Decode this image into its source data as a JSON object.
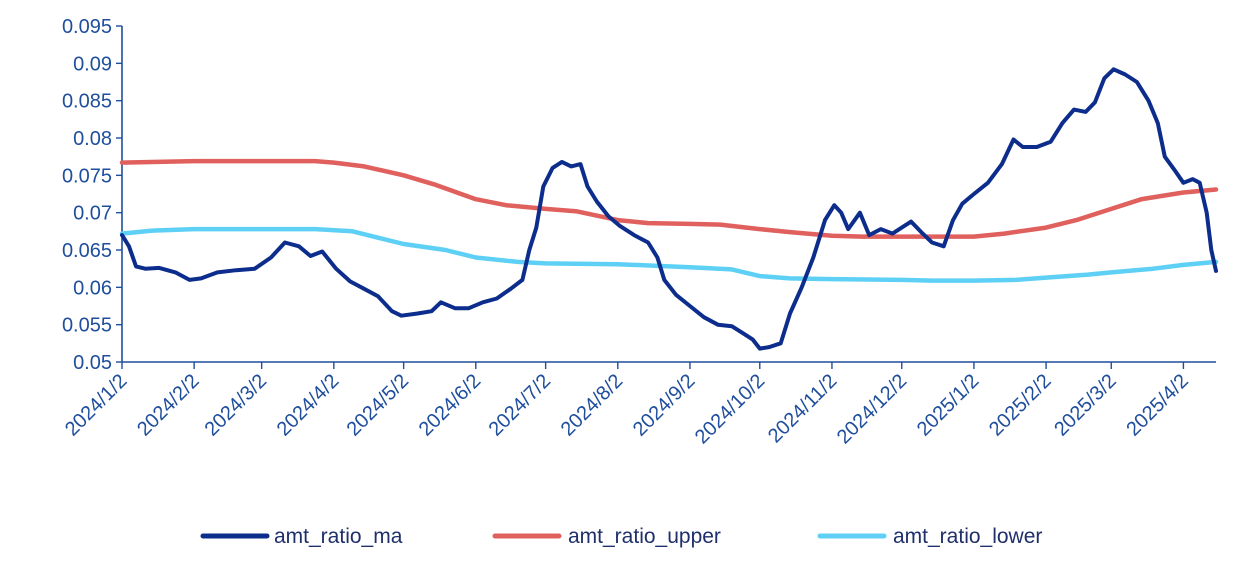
{
  "chart_data": {
    "type": "line",
    "title": "",
    "xlabel": "",
    "ylabel": "",
    "x_range": [
      "2024/1/2",
      "2025/4/16"
    ],
    "ylim": [
      0.05,
      0.095
    ],
    "yticks": [
      "0.05",
      "0.055",
      "0.06",
      "0.065",
      "0.07",
      "0.075",
      "0.08",
      "0.085",
      "0.09",
      "0.095"
    ],
    "xticks": [
      "2024/1/2",
      "2024/2/2",
      "2024/3/2",
      "2024/4/2",
      "2024/5/2",
      "2024/6/2",
      "2024/7/2",
      "2024/8/2",
      "2024/9/2",
      "2024/10/2",
      "2024/11/2",
      "2024/12/2",
      "2025/1/2",
      "2025/2/2",
      "2025/3/2",
      "2025/4/2"
    ],
    "grid": false,
    "legend_position": "bottom",
    "series": [
      {
        "name": "amt_ratio_ma",
        "color": "#0d2d8c",
        "points": [
          [
            "2024/1/2",
            0.067
          ],
          [
            "2024/1/5",
            0.0655
          ],
          [
            "2024/1/8",
            0.0628
          ],
          [
            "2024/1/12",
            0.0625
          ],
          [
            "2024/1/18",
            0.0626
          ],
          [
            "2024/1/25",
            0.062
          ],
          [
            "2024/1/31",
            0.061
          ],
          [
            "2024/2/5",
            0.0612
          ],
          [
            "2024/2/12",
            0.062
          ],
          [
            "2024/2/20",
            0.0623
          ],
          [
            "2024/2/28",
            0.0625
          ],
          [
            "2024/3/6",
            0.064
          ],
          [
            "2024/3/12",
            0.066
          ],
          [
            "2024/3/18",
            0.0655
          ],
          [
            "2024/3/23",
            0.0642
          ],
          [
            "2024/3/28",
            0.0648
          ],
          [
            "2024/4/3",
            0.0625
          ],
          [
            "2024/4/9",
            0.0608
          ],
          [
            "2024/4/15",
            0.0598
          ],
          [
            "2024/4/21",
            0.0588
          ],
          [
            "2024/4/27",
            0.0568
          ],
          [
            "2024/5/1",
            0.0562
          ],
          [
            "2024/5/8",
            0.0565
          ],
          [
            "2024/5/14",
            0.0568
          ],
          [
            "2024/5/18",
            0.058
          ],
          [
            "2024/5/24",
            0.0572
          ],
          [
            "2024/5/30",
            0.0572
          ],
          [
            "2024/6/5",
            0.058
          ],
          [
            "2024/6/11",
            0.0585
          ],
          [
            "2024/6/17",
            0.0598
          ],
          [
            "2024/6/22",
            0.061
          ],
          [
            "2024/6/25",
            0.065
          ],
          [
            "2024/6/28",
            0.068
          ],
          [
            "2024/7/1",
            0.0735
          ],
          [
            "2024/7/5",
            0.076
          ],
          [
            "2024/7/9",
            0.0768
          ],
          [
            "2024/7/13",
            0.0762
          ],
          [
            "2024/7/17",
            0.0765
          ],
          [
            "2024/7/20",
            0.0735
          ],
          [
            "2024/7/24",
            0.0715
          ],
          [
            "2024/7/29",
            0.0695
          ],
          [
            "2024/8/3",
            0.0682
          ],
          [
            "2024/8/9",
            0.067
          ],
          [
            "2024/8/15",
            0.066
          ],
          [
            "2024/8/19",
            0.064
          ],
          [
            "2024/8/22",
            0.061
          ],
          [
            "2024/8/27",
            0.059
          ],
          [
            "2024/9/2",
            0.0575
          ],
          [
            "2024/9/8",
            0.056
          ],
          [
            "2024/9/14",
            0.055
          ],
          [
            "2024/9/20",
            0.0548
          ],
          [
            "2024/9/25",
            0.0538
          ],
          [
            "2024/9/29",
            0.053
          ],
          [
            "2024/10/2",
            0.0518
          ],
          [
            "2024/10/6",
            0.052
          ],
          [
            "2024/10/11",
            0.0525
          ],
          [
            "2024/10/15",
            0.0565
          ],
          [
            "2024/10/20",
            0.06
          ],
          [
            "2024/10/25",
            0.064
          ],
          [
            "2024/10/30",
            0.069
          ],
          [
            "2024/11/3",
            0.071
          ],
          [
            "2024/11/6",
            0.07
          ],
          [
            "2024/11/9",
            0.0678
          ],
          [
            "2024/11/14",
            0.07
          ],
          [
            "2024/11/18",
            0.067
          ],
          [
            "2024/11/23",
            0.0678
          ],
          [
            "2024/11/28",
            0.0672
          ],
          [
            "2024/12/2",
            0.068
          ],
          [
            "2024/12/6",
            0.0688
          ],
          [
            "2024/12/11",
            0.0672
          ],
          [
            "2024/12/15",
            0.066
          ],
          [
            "2024/12/20",
            0.0655
          ],
          [
            "2024/12/24",
            0.069
          ],
          [
            "2024/12/28",
            0.0712
          ],
          [
            "2025/1/2",
            0.0725
          ],
          [
            "2025/1/8",
            0.074
          ],
          [
            "2025/1/14",
            0.0765
          ],
          [
            "2025/1/19",
            0.0798
          ],
          [
            "2025/1/23",
            0.0788
          ],
          [
            "2025/1/29",
            0.0788
          ],
          [
            "2025/2/4",
            0.0795
          ],
          [
            "2025/2/9",
            0.082
          ],
          [
            "2025/2/14",
            0.0838
          ],
          [
            "2025/2/19",
            0.0835
          ],
          [
            "2025/2/23",
            0.0848
          ],
          [
            "2025/2/27",
            0.088
          ],
          [
            "2025/3/3",
            0.0892
          ],
          [
            "2025/3/8",
            0.0885
          ],
          [
            "2025/3/13",
            0.0875
          ],
          [
            "2025/3/18",
            0.085
          ],
          [
            "2025/3/22",
            0.082
          ],
          [
            "2025/3/25",
            0.0775
          ],
          [
            "2025/3/29",
            0.0758
          ],
          [
            "2025/4/2",
            0.074
          ],
          [
            "2025/4/6",
            0.0745
          ],
          [
            "2025/4/9",
            0.074
          ],
          [
            "2025/4/12",
            0.07
          ],
          [
            "2025/4/14",
            0.065
          ],
          [
            "2025/4/16",
            0.0622
          ]
        ]
      },
      {
        "name": "amt_ratio_upper",
        "color": "#e0605e",
        "points": [
          [
            "2024/1/2",
            0.0767
          ],
          [
            "2024/2/2",
            0.0769
          ],
          [
            "2024/3/2",
            0.0769
          ],
          [
            "2024/3/25",
            0.0769
          ],
          [
            "2024/4/2",
            0.0767
          ],
          [
            "2024/4/15",
            0.0762
          ],
          [
            "2024/5/2",
            0.075
          ],
          [
            "2024/5/15",
            0.0738
          ],
          [
            "2024/6/2",
            0.0718
          ],
          [
            "2024/6/15",
            0.071
          ],
          [
            "2024/7/2",
            0.0705
          ],
          [
            "2024/7/15",
            0.0702
          ],
          [
            "2024/8/2",
            0.069
          ],
          [
            "2024/8/15",
            0.0686
          ],
          [
            "2024/9/2",
            0.0685
          ],
          [
            "2024/9/15",
            0.0684
          ],
          [
            "2024/10/2",
            0.0678
          ],
          [
            "2024/10/15",
            0.0674
          ],
          [
            "2024/11/2",
            0.0669
          ],
          [
            "2024/11/15",
            0.0668
          ],
          [
            "2024/12/2",
            0.0668
          ],
          [
            "2024/12/15",
            0.0668
          ],
          [
            "2025/1/2",
            0.0668
          ],
          [
            "2025/1/15",
            0.0672
          ],
          [
            "2025/2/2",
            0.068
          ],
          [
            "2025/2/15",
            0.069
          ],
          [
            "2025/3/2",
            0.0705
          ],
          [
            "2025/3/15",
            0.0718
          ],
          [
            "2025/4/2",
            0.0727
          ],
          [
            "2025/4/16",
            0.0731
          ]
        ]
      },
      {
        "name": "amt_ratio_lower",
        "color": "#5fd0f5",
        "points": [
          [
            "2024/1/2",
            0.0672
          ],
          [
            "2024/1/15",
            0.0676
          ],
          [
            "2024/2/2",
            0.0678
          ],
          [
            "2024/3/2",
            0.0678
          ],
          [
            "2024/3/25",
            0.0678
          ],
          [
            "2024/4/10",
            0.0675
          ],
          [
            "2024/5/2",
            0.0658
          ],
          [
            "2024/5/20",
            0.065
          ],
          [
            "2024/6/2",
            0.064
          ],
          [
            "2024/6/20",
            0.0634
          ],
          [
            "2024/7/2",
            0.0632
          ],
          [
            "2024/8/2",
            0.0631
          ],
          [
            "2024/9/2",
            0.0627
          ],
          [
            "2024/9/20",
            0.0624
          ],
          [
            "2024/10/2",
            0.0615
          ],
          [
            "2024/10/15",
            0.0612
          ],
          [
            "2024/11/2",
            0.0611
          ],
          [
            "2024/12/2",
            0.061
          ],
          [
            "2024/12/15",
            0.0609
          ],
          [
            "2025/1/2",
            0.0609
          ],
          [
            "2025/1/20",
            0.061
          ],
          [
            "2025/2/2",
            0.0613
          ],
          [
            "2025/2/20",
            0.0617
          ],
          [
            "2025/3/2",
            0.062
          ],
          [
            "2025/3/20",
            0.0625
          ],
          [
            "2025/4/2",
            0.063
          ],
          [
            "2025/4/16",
            0.0634
          ]
        ]
      }
    ]
  }
}
